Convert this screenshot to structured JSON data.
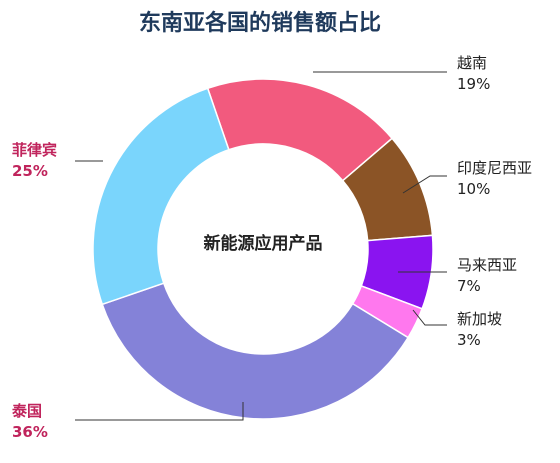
{
  "chart_data": {
    "type": "pie",
    "variant": "donut",
    "title": "东南亚各国的销售额占比",
    "center_label": "新能源应用产品",
    "unit": "%",
    "series": [
      {
        "name": "越南",
        "value": 19,
        "label": "19%",
        "color": "#f25a7e",
        "highlight": false
      },
      {
        "name": "印度尼西亚",
        "value": 10,
        "label": "10%",
        "color": "#8b5426",
        "highlight": false
      },
      {
        "name": "马来西亚",
        "value": 7,
        "label": "7%",
        "color": "#8a14f0",
        "highlight": false
      },
      {
        "name": "新加坡",
        "value": 3,
        "label": "3%",
        "color": "#ff78ee",
        "highlight": false
      },
      {
        "name": "泰国",
        "value": 36,
        "label": "36%",
        "color": "#8482d8",
        "highlight": true
      },
      {
        "name": "菲律宾",
        "value": 25,
        "label": "25%",
        "color": "#7ad5fc",
        "highlight": true
      }
    ],
    "colors": {
      "title": "#1f3a5c",
      "highlight_text": "#c0245c",
      "text": "#222222"
    }
  }
}
